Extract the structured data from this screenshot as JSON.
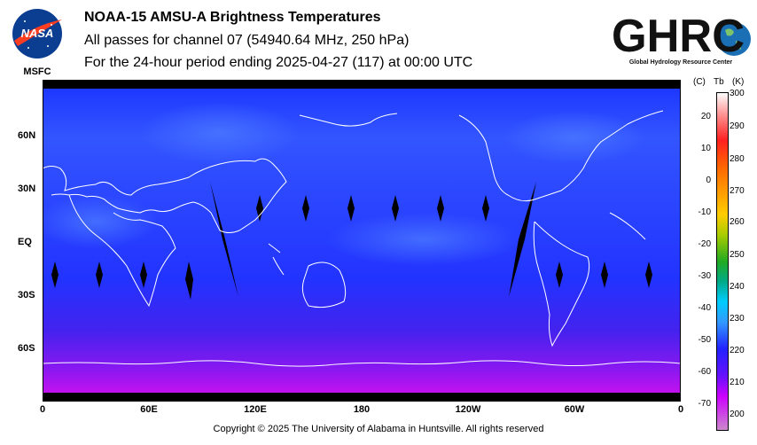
{
  "header": {
    "title": "NOAA-15 AMSU-A Brightness Temperatures",
    "subtitle": "All passes for channel 07 (54940.64 MHz, 250 hPa)",
    "period": "For the 24-hour period ending 2025-04-27 (117) at 00:00 UTC"
  },
  "logos": {
    "nasa": {
      "text": "NASA",
      "label": "MSFC"
    },
    "ghrc": {
      "text": "GHRC",
      "tagline": "Global Hydrology Resource Center"
    }
  },
  "map": {
    "lat_labels": [
      "60N",
      "30N",
      "EQ",
      "30S",
      "60S"
    ],
    "lon_labels": [
      "0",
      "60E",
      "120E",
      "180",
      "120W",
      "60W",
      "0"
    ]
  },
  "colorbar": {
    "header_c": "(C)",
    "header_tb": "Tb",
    "header_k": "(K)",
    "celsius_ticks": [
      "20",
      "10",
      "0",
      "-10",
      "-20",
      "-30",
      "-40",
      "-50",
      "-60",
      "-70"
    ],
    "kelvin_ticks": [
      "300",
      "290",
      "280",
      "270",
      "260",
      "250",
      "240",
      "230",
      "220",
      "210",
      "200"
    ],
    "colors": [
      "#ffffff",
      "#ff9999",
      "#ff2020",
      "#ff6600",
      "#ffcc00",
      "#aacc00",
      "#22aa22",
      "#00aa88",
      "#00ccff",
      "#3399ff",
      "#2222ff",
      "#6611ff",
      "#cc00ff",
      "#cc88cc"
    ]
  },
  "footer": {
    "copyright": "Copyright © 2025 The University of Alabama in Huntsville.  All rights reserved"
  }
}
